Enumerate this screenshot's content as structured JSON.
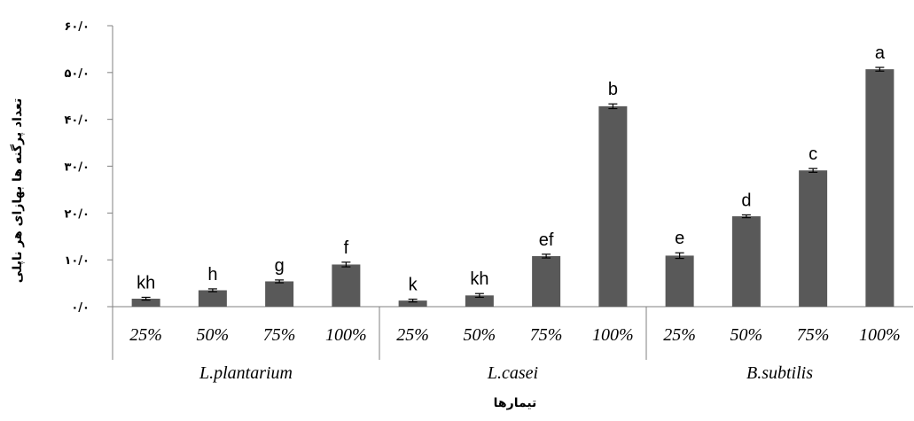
{
  "chart_data": {
    "type": "bar",
    "xlabel": "تیمارها",
    "ylabel": "تعداد پرگنه ها بهازای هر ناپلی",
    "ylim": [
      0,
      60
    ],
    "yticks": [
      0,
      10,
      20,
      30,
      40,
      50,
      60
    ],
    "ytick_labels": [
      "۰/۰",
      "۱۰/۰",
      "۲۰/۰",
      "۳۰/۰",
      "۴۰/۰",
      "۵۰/۰",
      "۶۰/۰"
    ],
    "grid": false,
    "bar_color": "#595959",
    "groups": [
      {
        "name": "L.plantarium",
        "categories": [
          "25%",
          "50%",
          "75%",
          "100%"
        ],
        "values": [
          1.7,
          3.5,
          5.4,
          9.0
        ],
        "errors": [
          0.3,
          0.3,
          0.3,
          0.5
        ],
        "letters": [
          "kh",
          "h",
          "g",
          "f"
        ]
      },
      {
        "name": "L.casei",
        "categories": [
          "25%",
          "50%",
          "75%",
          "100%"
        ],
        "values": [
          1.3,
          2.4,
          10.8,
          42.8
        ],
        "errors": [
          0.3,
          0.4,
          0.4,
          0.5
        ],
        "letters": [
          "k",
          "kh",
          "ef",
          "b"
        ]
      },
      {
        "name": "B.subtilis",
        "categories": [
          "25%",
          "50%",
          "75%",
          "100%"
        ],
        "values": [
          10.9,
          19.3,
          29.1,
          50.7
        ],
        "errors": [
          0.6,
          0.3,
          0.4,
          0.4
        ],
        "letters": [
          "e",
          "d",
          "c",
          "a"
        ]
      }
    ]
  }
}
